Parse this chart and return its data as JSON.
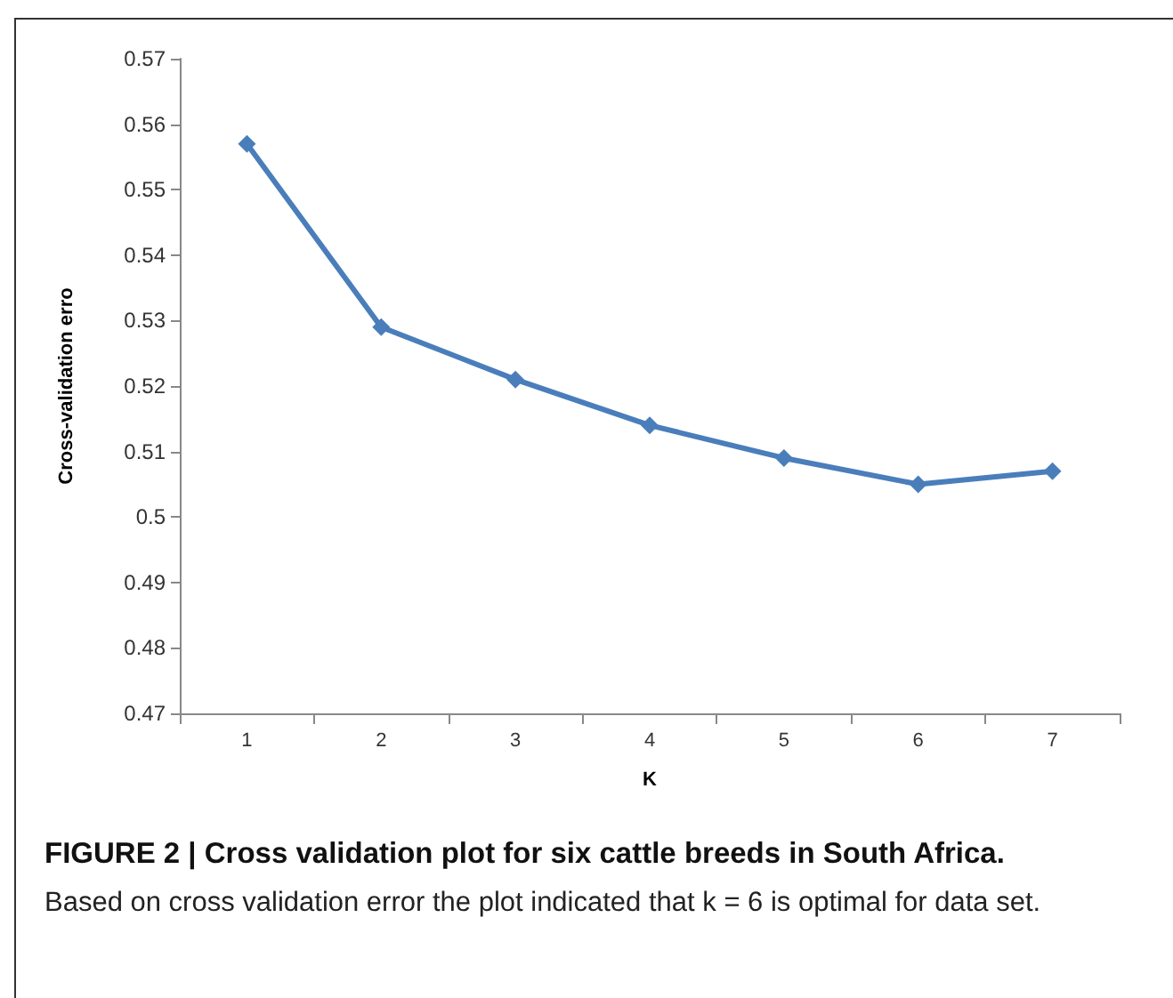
{
  "chart_data": {
    "type": "line",
    "title": "FIGURE 2 | Cross validation plot for six cattle breeds in South Africa.",
    "subtitle": "Based on cross validation error the plot indicated that k = 6 is optimal for data set.",
    "xlabel": "K",
    "ylabel": "Cross-validation erro",
    "categories": [
      "1",
      "2",
      "3",
      "4",
      "5",
      "6",
      "7"
    ],
    "series": [
      {
        "color": "#4a7ebb",
        "values": [
          0.557,
          0.529,
          0.521,
          0.514,
          0.509,
          0.505,
          0.507
        ]
      }
    ],
    "ylim": [
      0.47,
      0.57
    ],
    "yticks": [
      0.47,
      0.48,
      0.49,
      0.5,
      0.51,
      0.52,
      0.53,
      0.54,
      0.55,
      0.56,
      0.57
    ],
    "grid": false,
    "marker": "diamond",
    "line_style": "solid"
  }
}
